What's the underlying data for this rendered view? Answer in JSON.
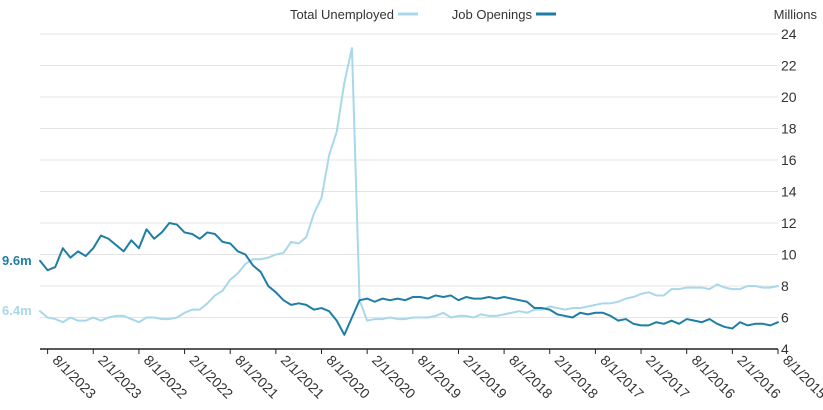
{
  "chart_data": {
    "type": "line",
    "orientation": "mirrored",
    "title": "",
    "xlabel": "",
    "ylabel": "Millions",
    "ylim": [
      4,
      24
    ],
    "yticks": [
      4,
      6,
      8,
      10,
      12,
      14,
      16,
      18,
      20,
      22,
      24
    ],
    "xtick_labels": [
      "8/1/2015",
      "2/1/2016",
      "8/1/2016",
      "2/1/2017",
      "8/1/2017",
      "2/1/2018",
      "8/1/2018",
      "2/1/2019",
      "8/1/2019",
      "2/1/2020",
      "8/1/2020",
      "2/1/2021",
      "8/1/2021",
      "2/1/2022",
      "8/1/2022",
      "2/1/2023",
      "8/1/2023"
    ],
    "grid": true,
    "legend_position": "top",
    "colors": {
      "job_openings": "#1f7ea5",
      "total_unemployed": "#a8d8ea",
      "grid": "#e4e4e4",
      "axis": "#222222"
    },
    "x": [
      "2015-08",
      "2015-09",
      "2015-10",
      "2015-11",
      "2015-12",
      "2016-01",
      "2016-02",
      "2016-03",
      "2016-04",
      "2016-05",
      "2016-06",
      "2016-07",
      "2016-08",
      "2016-09",
      "2016-10",
      "2016-11",
      "2016-12",
      "2017-01",
      "2017-02",
      "2017-03",
      "2017-04",
      "2017-05",
      "2017-06",
      "2017-07",
      "2017-08",
      "2017-09",
      "2017-10",
      "2017-11",
      "2017-12",
      "2018-01",
      "2018-02",
      "2018-03",
      "2018-04",
      "2018-05",
      "2018-06",
      "2018-07",
      "2018-08",
      "2018-09",
      "2018-10",
      "2018-11",
      "2018-12",
      "2019-01",
      "2019-02",
      "2019-03",
      "2019-04",
      "2019-05",
      "2019-06",
      "2019-07",
      "2019-08",
      "2019-09",
      "2019-10",
      "2019-11",
      "2019-12",
      "2020-01",
      "2020-02",
      "2020-03",
      "2020-04",
      "2020-05",
      "2020-06",
      "2020-07",
      "2020-08",
      "2020-09",
      "2020-10",
      "2020-11",
      "2020-12",
      "2021-01",
      "2021-02",
      "2021-03",
      "2021-04",
      "2021-05",
      "2021-06",
      "2021-07",
      "2021-08",
      "2021-09",
      "2021-10",
      "2021-11",
      "2021-12",
      "2022-01",
      "2022-02",
      "2022-03",
      "2022-04",
      "2022-05",
      "2022-06",
      "2022-07",
      "2022-08",
      "2022-09",
      "2022-10",
      "2022-11",
      "2022-12",
      "2023-01",
      "2023-02",
      "2023-03",
      "2023-04",
      "2023-05",
      "2023-06",
      "2023-07",
      "2023-08",
      "2023-09"
    ],
    "series": [
      {
        "name": "Job Openings",
        "key": "job_openings",
        "end_label": "9.6m",
        "values": [
          5.7,
          5.5,
          5.6,
          5.6,
          5.5,
          5.7,
          5.3,
          5.4,
          5.6,
          5.9,
          5.7,
          5.8,
          5.9,
          5.6,
          5.8,
          5.6,
          5.7,
          5.5,
          5.5,
          5.6,
          5.9,
          5.8,
          6.1,
          6.3,
          6.3,
          6.2,
          6.3,
          6.0,
          6.1,
          6.2,
          6.5,
          6.6,
          6.6,
          7.0,
          7.1,
          7.2,
          7.3,
          7.2,
          7.3,
          7.2,
          7.2,
          7.3,
          7.1,
          7.4,
          7.3,
          7.4,
          7.2,
          7.3,
          7.3,
          7.1,
          7.2,
          7.1,
          7.2,
          7.0,
          7.2,
          7.1,
          6.0,
          4.9,
          5.8,
          6.4,
          6.6,
          6.5,
          6.8,
          6.9,
          6.8,
          7.1,
          7.6,
          8.0,
          8.9,
          9.3,
          10.0,
          10.2,
          10.7,
          10.8,
          11.3,
          11.4,
          11.0,
          11.3,
          11.4,
          11.9,
          12.0,
          11.4,
          11.0,
          11.6,
          10.4,
          10.9,
          10.2,
          10.6,
          11.0,
          11.2,
          10.4,
          9.9,
          10.2,
          9.8,
          10.4,
          9.2,
          9.0,
          9.6
        ]
      },
      {
        "name": "Total Unemployed",
        "key": "total_unemployed",
        "end_label": "6.4m",
        "values": [
          8.0,
          7.9,
          7.9,
          8.0,
          8.0,
          7.8,
          7.8,
          7.9,
          8.1,
          7.8,
          7.9,
          7.9,
          7.9,
          7.8,
          7.8,
          7.4,
          7.4,
          7.6,
          7.5,
          7.3,
          7.2,
          7.0,
          6.9,
          6.9,
          6.8,
          6.7,
          6.6,
          6.6,
          6.5,
          6.6,
          6.7,
          6.5,
          6.5,
          6.3,
          6.4,
          6.3,
          6.2,
          6.1,
          6.1,
          6.2,
          6.0,
          6.1,
          6.1,
          6.0,
          6.3,
          6.1,
          6.0,
          6.0,
          6.0,
          5.9,
          5.9,
          6.0,
          5.9,
          5.9,
          5.8,
          7.1,
          23.1,
          20.9,
          17.8,
          16.3,
          13.6,
          12.6,
          11.1,
          10.7,
          10.8,
          10.1,
          10.0,
          9.8,
          9.7,
          9.7,
          9.4,
          8.8,
          8.4,
          7.7,
          7.4,
          6.9,
          6.5,
          6.5,
          6.3,
          6.0,
          5.9,
          5.9,
          6.0,
          6.0,
          5.7,
          5.9,
          6.1,
          6.1,
          6.0,
          5.8,
          6.0,
          5.8,
          5.8,
          6.0,
          5.7,
          5.9,
          6.0,
          6.4
        ]
      }
    ]
  }
}
